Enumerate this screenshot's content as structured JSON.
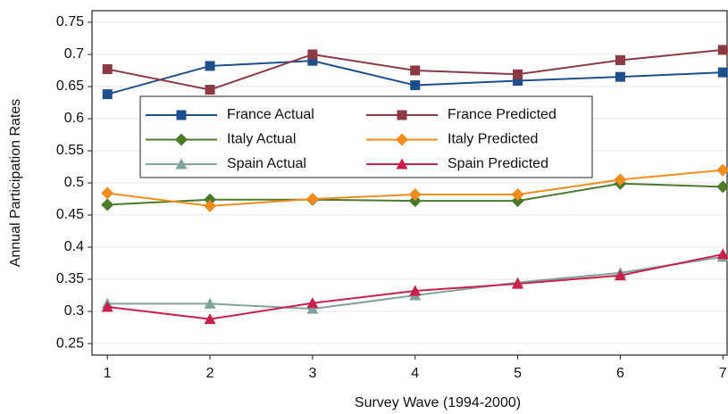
{
  "chart_data": {
    "type": "line",
    "x_label": "Survey Wave (1994-2000)",
    "y_label": "Annual Participation Rates",
    "x": [
      1,
      2,
      3,
      4,
      5,
      6,
      7
    ],
    "xlim": [
      0.85,
      7.05
    ],
    "xticks": [
      1,
      2,
      3,
      4,
      5,
      6,
      7
    ],
    "ylim": [
      0.232,
      0.768
    ],
    "yticks": [
      0.25,
      0.3,
      0.35,
      0.4,
      0.45,
      0.5,
      0.55,
      0.6,
      0.65,
      0.7,
      0.75
    ],
    "grid": true,
    "legend": "top-center",
    "series": [
      {
        "name": "France Actual",
        "color": "#1f4e8c",
        "marker": "square",
        "values": [
          0.638,
          0.682,
          0.69,
          0.652,
          0.659,
          0.665,
          0.672
        ]
      },
      {
        "name": "France Predicted",
        "color": "#8b3a44",
        "marker": "square",
        "values": [
          0.677,
          0.645,
          0.7,
          0.675,
          0.669,
          0.691,
          0.707
        ]
      },
      {
        "name": "Italy Actual",
        "color": "#4a7a2a",
        "marker": "diamond",
        "values": [
          0.466,
          0.474,
          0.474,
          0.472,
          0.472,
          0.499,
          0.494
        ]
      },
      {
        "name": "Italy Predicted",
        "color": "#f08c1e",
        "marker": "diamond",
        "values": [
          0.484,
          0.464,
          0.475,
          0.482,
          0.482,
          0.505,
          0.52
        ]
      },
      {
        "name": "Spain Actual",
        "color": "#7fa39c",
        "marker": "triangle",
        "values": [
          0.312,
          0.312,
          0.304,
          0.325,
          0.345,
          0.36,
          0.385
        ]
      },
      {
        "name": "Spain Predicted",
        "color": "#c8204a",
        "marker": "triangle",
        "values": [
          0.307,
          0.288,
          0.313,
          0.332,
          0.343,
          0.356,
          0.389
        ]
      }
    ]
  }
}
